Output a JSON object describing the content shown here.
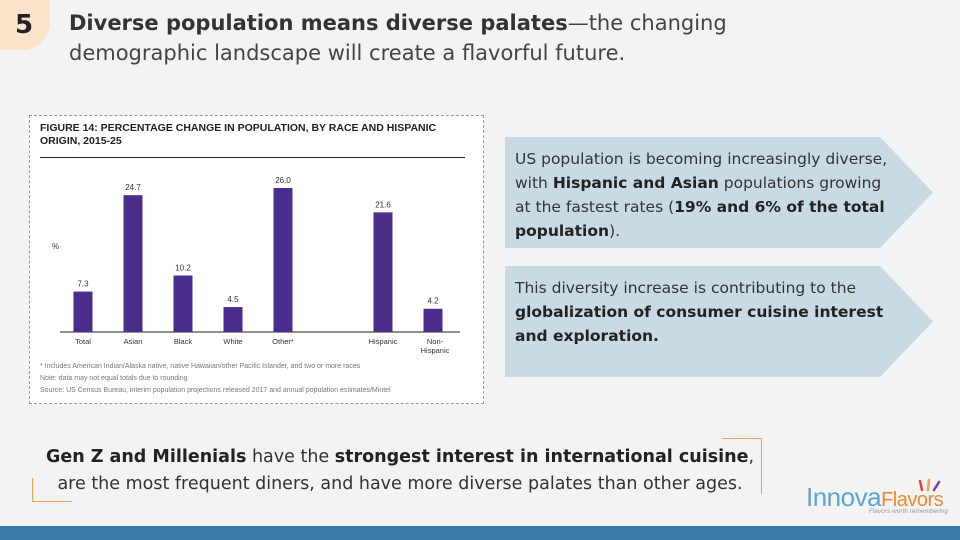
{
  "slide": {
    "number": "5",
    "headline_bold": "Diverse population means diverse palates",
    "headline_rest": "—the changing demographic landscape will create a flavorful future."
  },
  "figure": {
    "title": "FIGURE 14: PERCENTAGE CHANGE IN POPULATION, BY RACE AND HISPANIC ORIGIN, 2015-25",
    "footnote_1": "* Includes American Indian/Alaska native, native Hawaiian/other Pacific Islander, and two or more races",
    "footnote_2": "Note: data may not equal totals due to rounding",
    "footnote_3": "Source: US Census Bureau, interim population projections released 2017 and annual population estimates/Mintel"
  },
  "chart_data": {
    "type": "bar",
    "title": "FIGURE 14: PERCENTAGE CHANGE IN POPULATION, BY RACE AND HISPANIC ORIGIN, 2015-25",
    "ylabel": "%",
    "categories": [
      "Total",
      "Asian",
      "Black",
      "White",
      "Other*",
      "Hispanic",
      "Non-Hispanic"
    ],
    "values": [
      7.3,
      24.7,
      10.2,
      4.5,
      26.0,
      21.6,
      4.2
    ],
    "value_labels": [
      "7.3",
      "24.7",
      "10.2",
      "4.5",
      "26.0",
      "21.6",
      "4.2"
    ],
    "ylim": [
      0,
      26
    ],
    "grid": false,
    "color": "#4b2d8c"
  },
  "callouts": [
    {
      "t1": "US population is becoming increasingly diverse, with ",
      "b1": "Hispanic and Asian",
      "t2": " populations growing at the fastest rates (",
      "b2": "19% and 6% of the total population",
      "t3": ")."
    },
    {
      "t1": "This diversity increase is contributing to the ",
      "b1": "globalization of consumer cuisine interest and exploration."
    }
  ],
  "bottom": {
    "b1": "Gen Z and Millenials",
    "t1": " have the ",
    "b2": "strongest interest in international cuisine",
    "t2": ", are the most frequent diners, and have more diverse palates than other ages."
  },
  "logo": {
    "innova": "Innova",
    "flavors": "Flavors",
    "tagline": "Flavors worth remembering"
  },
  "colors": {
    "accent_orange": "#f0a24c",
    "bar_blue": "#3a7ba6",
    "callout_bg": "#c9dae5",
    "badge_bg": "#fbe3cc"
  }
}
